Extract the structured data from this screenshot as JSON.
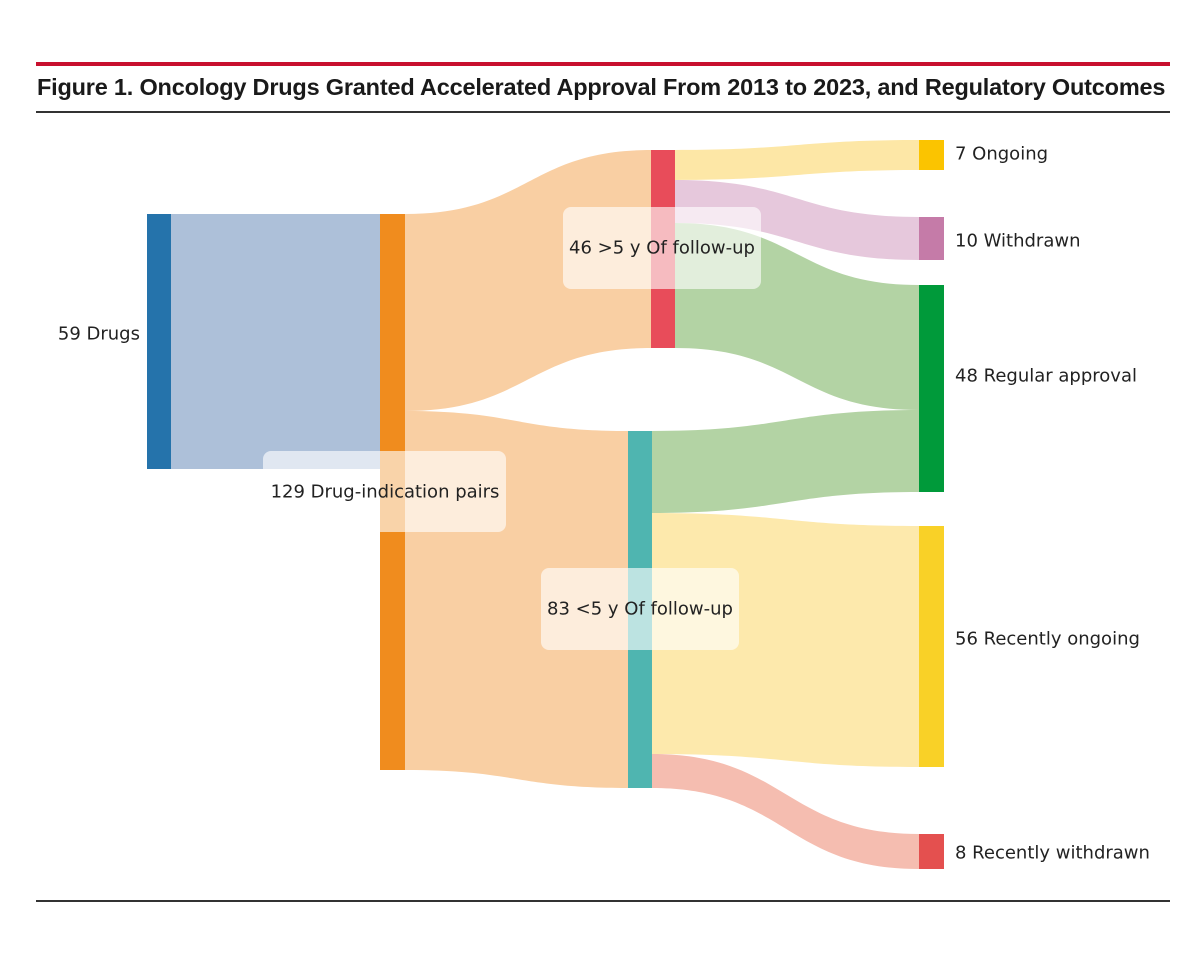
{
  "figure": {
    "title": "Figure 1. Oncology Drugs Granted Accelerated Approval From 2013 to 2023, and Regulatory Outcomes"
  },
  "chart_data": {
    "type": "sankey",
    "nodes": [
      {
        "id": "drugs",
        "label": "59 Drugs",
        "value": 59,
        "color": "#2573ab"
      },
      {
        "id": "pairs",
        "label": "129 Drug-indication pairs",
        "value": 129,
        "color": "#f08c1e"
      },
      {
        "id": "gt5",
        "label": "46 >5 y Of follow-up",
        "value": 46,
        "color": "#e84c5a"
      },
      {
        "id": "lt5",
        "label": "83 <5 y Of follow-up",
        "value": 83,
        "color": "#4fb5b0"
      },
      {
        "id": "ongoing",
        "label": "7 Ongoing",
        "value": 7,
        "color": "#fbc400"
      },
      {
        "id": "withdrawn",
        "label": "10 Withdrawn",
        "value": 10,
        "color": "#c57ba8"
      },
      {
        "id": "regular",
        "label": "48 Regular approval",
        "value": 48,
        "color": "#009a3a"
      },
      {
        "id": "recent_ongoing",
        "label": "56 Recently ongoing",
        "value": 56,
        "color": "#f9d127"
      },
      {
        "id": "recent_withdrawn",
        "label": "8 Recently withdrawn",
        "value": 8,
        "color": "#e4504f"
      }
    ],
    "links": [
      {
        "source": "drugs",
        "target": "pairs",
        "value": 59,
        "color": "#adc0d9"
      },
      {
        "source": "pairs",
        "target": "gt5",
        "value": 46,
        "color": "#f9cfa3"
      },
      {
        "source": "pairs",
        "target": "lt5",
        "value": 83,
        "color": "#f9cfa3"
      },
      {
        "source": "gt5",
        "target": "ongoing",
        "value": 7,
        "color": "#fde7a6"
      },
      {
        "source": "gt5",
        "target": "withdrawn",
        "value": 10,
        "color": "#e6c8dc"
      },
      {
        "source": "gt5",
        "target": "regular",
        "value": 29,
        "color": "#b3d3a4"
      },
      {
        "source": "lt5",
        "target": "regular",
        "value": 19,
        "color": "#b3d3a4"
      },
      {
        "source": "lt5",
        "target": "recent_ongoing",
        "value": 56,
        "color": "#fde9ac"
      },
      {
        "source": "lt5",
        "target": "recent_withdrawn",
        "value": 8,
        "color": "#f5bdb0"
      }
    ]
  }
}
